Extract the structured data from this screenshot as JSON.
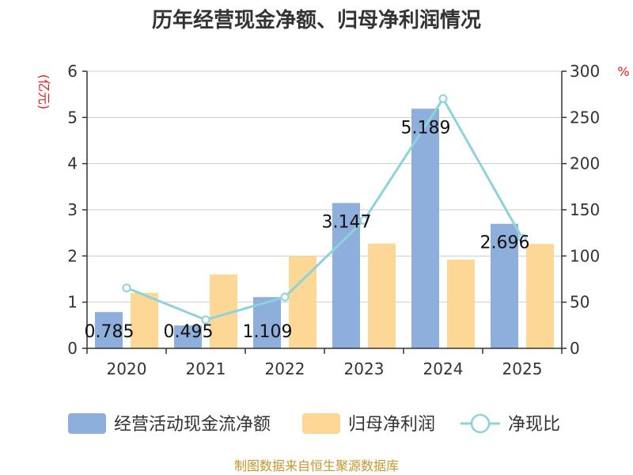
{
  "chart_data": {
    "type": "bar",
    "title": "历年经营现金净额、归母净利润情况",
    "categories": [
      "2020",
      "2021",
      "2022",
      "2023",
      "2024",
      "2025"
    ],
    "y_left": {
      "unit": "(亿元)",
      "ylim": [
        0,
        6
      ],
      "ticks": [
        "0",
        "1",
        "2",
        "3",
        "4",
        "5",
        "6"
      ]
    },
    "y_right": {
      "unit": "%",
      "ylim": [
        0,
        300
      ],
      "ticks": [
        "0",
        "50",
        "100",
        "150",
        "200",
        "250",
        "300"
      ]
    },
    "series": [
      {
        "name": "经营活动现金流净额",
        "type": "bar",
        "axis": "left",
        "color": "#8eaedc",
        "values": [
          0.785,
          0.495,
          1.109,
          3.147,
          5.189,
          2.696
        ],
        "labels": [
          "0.785",
          "0.495",
          "1.109",
          "3.147",
          "5.189",
          "2.696"
        ]
      },
      {
        "name": "归母净利润",
        "type": "bar",
        "axis": "left",
        "color": "#fdd796",
        "values": [
          1.2,
          1.6,
          2.0,
          2.27,
          1.92,
          2.26
        ]
      },
      {
        "name": "净现比",
        "type": "line",
        "axis": "right",
        "color": "#8ed3d9",
        "values": [
          65.4,
          30.9,
          55.5,
          138.6,
          270.3,
          119.3
        ]
      }
    ],
    "grid": true,
    "legend_position": "bottom"
  },
  "source": "制图数据来自恒生聚源数据库"
}
